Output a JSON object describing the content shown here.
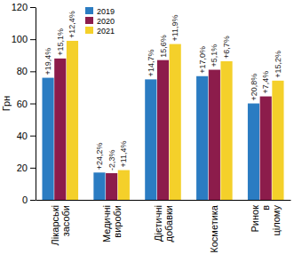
{
  "chart_data": {
    "type": "bar",
    "y_label": "Грн",
    "categories": [
      "Лікарські засоби",
      "Медичні вироби",
      "Дієтичні добавки",
      "Косметика",
      "Ринок в цілому"
    ],
    "series": [
      {
        "name": "2019",
        "color": "#2b7cc2",
        "values": [
          76,
          17,
          75,
          77,
          60
        ]
      },
      {
        "name": "2020",
        "color": "#8c1c4b",
        "values": [
          88,
          16.6,
          87,
          81,
          64.4
        ]
      },
      {
        "name": "2021",
        "color": "#f4d02a",
        "values": [
          99,
          18.5,
          97,
          86.3,
          74.2
        ]
      }
    ],
    "annotations": [
      [
        "+19,4%",
        "+24,2%",
        "+14,7%",
        "+17,0%",
        "+20,8%"
      ],
      [
        "+15,1%",
        "-2,3%",
        "15,6%",
        "+5,1%",
        "+7,4%"
      ],
      [
        "+12,4%",
        "+11,4%",
        "+11,9%",
        "+6,7%",
        "+15,2%"
      ]
    ],
    "ylim": [
      0,
      120
    ],
    "yticks": [
      0,
      20,
      40,
      60,
      80,
      100,
      120
    ],
    "grid": false,
    "legend": "upper left"
  }
}
